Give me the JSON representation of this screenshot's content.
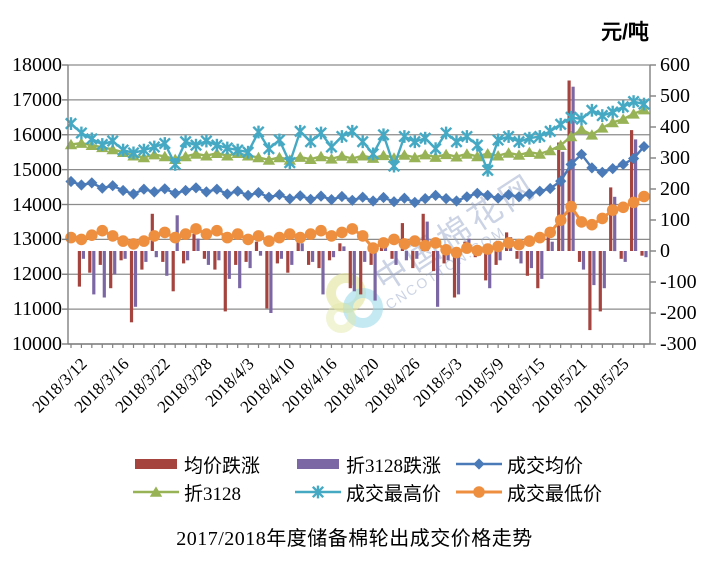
{
  "unit_label": "元/吨",
  "title": "2017/2018年度储备棉轮出成交价格走势",
  "watermark": {
    "text": "中国棉花网",
    "subtext": "CNCOTTON.COM"
  },
  "chart_data": {
    "type": "combo-bar-line",
    "n_points": 56,
    "x_labels": [
      "2018/3/12",
      "2018/3/16",
      "2018/3/22",
      "2018/3/28",
      "2018/4/3",
      "2018/4/10",
      "2018/4/16",
      "2018/4/20",
      "2018/4/26",
      "2018/5/3",
      "2018/5/9",
      "2018/5/15",
      "2018/5/21",
      "2018/5/25"
    ],
    "x_label_every": 4,
    "left_axis": {
      "min": 10000,
      "max": 18000,
      "step": 1000,
      "ticks": [
        "18000",
        "17000",
        "16000",
        "15000",
        "14000",
        "13000",
        "12000",
        "11000",
        "10000"
      ]
    },
    "right_axis": {
      "min": -300,
      "max": 600,
      "step": 100,
      "ticks": [
        "600",
        "500",
        "400",
        "300",
        "200",
        "100",
        "0",
        "-100",
        "-200",
        "-300"
      ]
    },
    "grid": "horizontal-left-axis",
    "legend_position": "bottom",
    "legend_order": [
      "avg-price-change",
      "index3128-change",
      "avg-price",
      "index3128",
      "max-price",
      "min-price"
    ],
    "colors": {
      "grid": "#8c8c8c",
      "axis": "#808080",
      "text": "#000000",
      "watermark_text": "rgba(152,168,202,0.5)",
      "watermark_ring1": "#e3e6a3",
      "watermark_ring2": "#9edbe9"
    },
    "series": [
      {
        "key": "avg-price-change",
        "name": "均价跌涨",
        "type": "bar",
        "axis": "right",
        "color": "#a5443e",
        "values": [
          0,
          -115,
          -70,
          -45,
          -120,
          -30,
          -230,
          -60,
          120,
          -35,
          -130,
          -40,
          55,
          -25,
          -60,
          -195,
          -45,
          -35,
          30,
          -185,
          -40,
          -70,
          35,
          -45,
          -55,
          -30,
          25,
          -120,
          -140,
          -45,
          30,
          -25,
          90,
          -55,
          120,
          -65,
          -40,
          -150,
          30,
          -20,
          -95,
          -45,
          60,
          -25,
          -80,
          -120,
          45,
          350,
          550,
          -35,
          -255,
          -195,
          205,
          -25,
          390,
          -15
        ]
      },
      {
        "key": "index3128-change",
        "name": "折3128跌涨",
        "type": "bar",
        "axis": "right",
        "color": "#7c67a5",
        "values": [
          0,
          -25,
          -140,
          -150,
          -75,
          -25,
          -180,
          -35,
          -20,
          -80,
          115,
          -30,
          40,
          -45,
          -30,
          -90,
          -120,
          -55,
          -15,
          -200,
          -25,
          -45,
          25,
          -35,
          -140,
          -20,
          15,
          -130,
          -35,
          -160,
          20,
          -45,
          -30,
          -25,
          95,
          -180,
          -30,
          -140,
          40,
          -15,
          -120,
          -30,
          45,
          -40,
          -55,
          -90,
          30,
          320,
          530,
          -60,
          -110,
          -120,
          175,
          -35,
          360,
          -20
        ]
      },
      {
        "key": "avg-price",
        "name": "成交均价",
        "type": "line",
        "marker": "diamond",
        "axis": "left",
        "color": "#4b7ab8",
        "values": [
          14660,
          14560,
          14620,
          14470,
          14540,
          14400,
          14300,
          14440,
          14360,
          14450,
          14320,
          14400,
          14480,
          14360,
          14440,
          14300,
          14380,
          14260,
          14340,
          14210,
          14280,
          14160,
          14250,
          14150,
          14240,
          14140,
          14230,
          14120,
          14210,
          14100,
          14200,
          14080,
          14180,
          14060,
          14170,
          14260,
          14170,
          14100,
          14220,
          14320,
          14260,
          14180,
          14280,
          14220,
          14300,
          14380,
          14460,
          14670,
          15150,
          15440,
          15050,
          14920,
          15030,
          15150,
          15320,
          15660
        ]
      },
      {
        "key": "index3128",
        "name": "折3128",
        "type": "line",
        "marker": "triangle",
        "axis": "left",
        "color": "#97b356",
        "values": [
          15720,
          15760,
          15700,
          15640,
          15580,
          15500,
          15400,
          15350,
          15430,
          15380,
          15300,
          15380,
          15450,
          15400,
          15470,
          15400,
          15470,
          15400,
          15350,
          15280,
          15350,
          15280,
          15360,
          15300,
          15380,
          15310,
          15390,
          15320,
          15400,
          15330,
          15410,
          15340,
          15420,
          15350,
          15430,
          15360,
          15440,
          15370,
          15450,
          15380,
          15460,
          15400,
          15480,
          15420,
          15500,
          15450,
          15550,
          15700,
          15950,
          16150,
          16000,
          16200,
          16350,
          16450,
          16600,
          16720
        ]
      },
      {
        "key": "max-price",
        "name": "成交最高价",
        "type": "line",
        "marker": "asterisk",
        "axis": "left",
        "color": "#45a9c4",
        "values": [
          16320,
          16050,
          15880,
          15720,
          15820,
          15560,
          15480,
          15560,
          15650,
          15750,
          15150,
          15800,
          15700,
          15820,
          15700,
          15620,
          15560,
          15500,
          16080,
          15600,
          15850,
          15200,
          16100,
          15800,
          16050,
          15650,
          15950,
          16100,
          15800,
          15450,
          16000,
          15100,
          15950,
          15800,
          15900,
          15600,
          16050,
          15800,
          15950,
          15700,
          14980,
          15850,
          15950,
          15800,
          15900,
          15950,
          16100,
          16300,
          16500,
          16450,
          16700,
          16550,
          16650,
          16800,
          16950,
          16880
        ]
      },
      {
        "key": "min-price",
        "name": "成交最低价",
        "type": "line",
        "marker": "circle",
        "axis": "left",
        "color": "#ee8f40",
        "values": [
          13050,
          13000,
          13120,
          13250,
          13100,
          12950,
          12870,
          12950,
          13100,
          13200,
          13050,
          13150,
          13300,
          13150,
          13250,
          13050,
          13150,
          13000,
          13100,
          12950,
          13050,
          13150,
          13050,
          13150,
          13250,
          13100,
          13200,
          13300,
          13100,
          12750,
          12900,
          13000,
          12870,
          12950,
          12820,
          12900,
          12700,
          12620,
          12750,
          12680,
          12720,
          12800,
          12900,
          12850,
          12950,
          13050,
          13200,
          13550,
          13940,
          13500,
          13420,
          13600,
          13840,
          13920,
          14060,
          14230
        ]
      }
    ]
  }
}
